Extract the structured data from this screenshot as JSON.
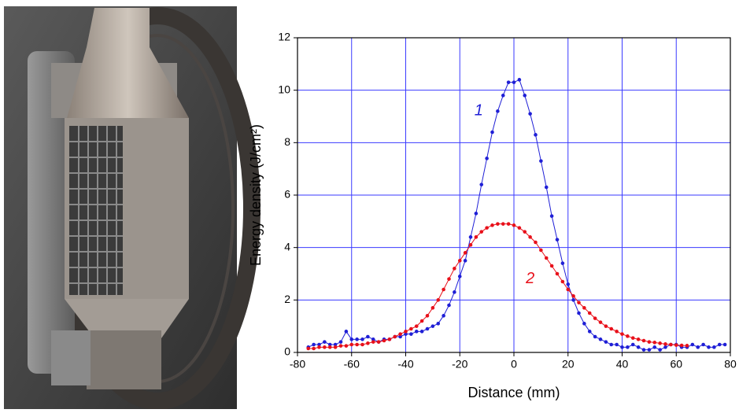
{
  "chart_data": {
    "type": "line",
    "x_label": "Distance (mm)",
    "y_label": "Energy density (J/cm²)",
    "x": [
      -76,
      -74,
      -72,
      -70,
      -68,
      -66,
      -64,
      -62,
      -60,
      -58,
      -56,
      -54,
      -52,
      -50,
      -48,
      -46,
      -44,
      -42,
      -40,
      -38,
      -36,
      -34,
      -32,
      -30,
      -28,
      -26,
      -24,
      -22,
      -20,
      -18,
      -16,
      -14,
      -12,
      -10,
      -8,
      -6,
      -4,
      -2,
      0,
      2,
      4,
      6,
      8,
      10,
      12,
      14,
      16,
      18,
      20,
      22,
      24,
      26,
      28,
      30,
      32,
      34,
      36,
      38,
      40,
      42,
      44,
      46,
      48,
      50,
      52,
      54,
      56,
      58,
      60,
      62,
      64,
      66,
      68,
      70,
      72,
      74,
      76,
      78
    ],
    "series": [
      {
        "name": "1",
        "color": "#1f1fd6",
        "values": [
          0.2,
          0.3,
          0.3,
          0.4,
          0.3,
          0.3,
          0.4,
          0.8,
          0.5,
          0.5,
          0.5,
          0.6,
          0.5,
          0.4,
          0.5,
          0.5,
          0.6,
          0.6,
          0.7,
          0.7,
          0.8,
          0.8,
          0.9,
          1.0,
          1.1,
          1.4,
          1.8,
          2.3,
          2.9,
          3.5,
          4.4,
          5.3,
          6.4,
          7.4,
          8.4,
          9.2,
          9.8,
          10.3,
          10.3,
          10.4,
          9.8,
          9.1,
          8.3,
          7.3,
          6.3,
          5.2,
          4.3,
          3.4,
          2.6,
          2.0,
          1.5,
          1.1,
          0.8,
          0.6,
          0.5,
          0.4,
          0.3,
          0.3,
          0.2,
          0.2,
          0.3,
          0.2,
          0.1,
          0.1,
          0.2,
          0.1,
          0.2,
          0.3,
          0.3,
          0.2,
          0.2,
          0.3,
          0.2,
          0.3,
          0.2,
          0.2,
          0.3,
          0.3
        ]
      },
      {
        "name": "2",
        "color": "#e8101a",
        "values": [
          0.15,
          0.15,
          0.2,
          0.2,
          0.2,
          0.2,
          0.25,
          0.25,
          0.3,
          0.3,
          0.3,
          0.35,
          0.4,
          0.4,
          0.45,
          0.5,
          0.6,
          0.7,
          0.8,
          0.9,
          1.0,
          1.2,
          1.4,
          1.7,
          2.0,
          2.4,
          2.8,
          3.2,
          3.5,
          3.8,
          4.1,
          4.4,
          4.6,
          4.75,
          4.85,
          4.9,
          4.9,
          4.9,
          4.85,
          4.75,
          4.6,
          4.4,
          4.2,
          3.9,
          3.6,
          3.3,
          3.0,
          2.7,
          2.4,
          2.15,
          1.9,
          1.7,
          1.5,
          1.3,
          1.15,
          1.0,
          0.9,
          0.8,
          0.7,
          0.62,
          0.55,
          0.5,
          0.45,
          0.4,
          0.38,
          0.35,
          0.32,
          0.3,
          0.28,
          0.27,
          0.26,
          null,
          null,
          null,
          null,
          null,
          null,
          null
        ]
      }
    ],
    "xlim": [
      -80,
      80
    ],
    "xticks": [
      -80,
      -60,
      -40,
      -20,
      0,
      20,
      40,
      60,
      80
    ],
    "ylim": [
      0,
      12
    ],
    "yticks": [
      0,
      2,
      4,
      6,
      8,
      10,
      12
    ],
    "grid": true,
    "grid_color": "#3a3aff",
    "legend": false
  }
}
